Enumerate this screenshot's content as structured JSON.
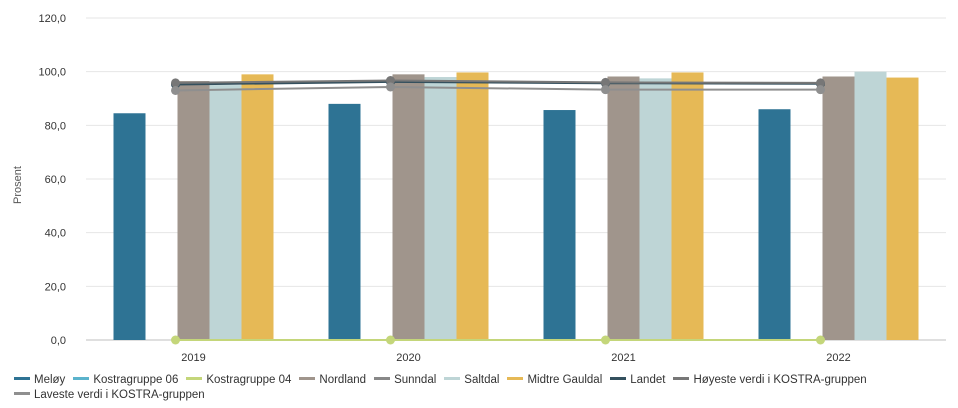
{
  "chart_data": {
    "type": "bar",
    "title": "",
    "ylabel": "Prosent",
    "xlabel": "",
    "ylim": [
      0,
      120
    ],
    "yticks": [
      "0,0",
      "20,0",
      "40,0",
      "60,0",
      "80,0",
      "100,0",
      "120,0"
    ],
    "categories": [
      "2019",
      "2020",
      "2021",
      "2022"
    ],
    "grid": true,
    "legend_position": "bottom",
    "series": [
      {
        "name": "Meløy",
        "kind": "bar",
        "color": "#2e7394",
        "values": [
          84.5,
          88.0,
          85.7,
          86.0
        ]
      },
      {
        "name": "Kostragruppe 06",
        "kind": "bar",
        "color": "#5bb3cc",
        "values": [
          null,
          null,
          null,
          null
        ]
      },
      {
        "name": "Kostragruppe 04",
        "kind": "line",
        "color": "#c4d67a",
        "values": [
          0,
          0,
          0,
          0
        ]
      },
      {
        "name": "Nordland",
        "kind": "bar",
        "color": "#a0958c",
        "values": [
          96.5,
          99.0,
          98.2,
          98.2
        ]
      },
      {
        "name": "Sunndal",
        "kind": "line",
        "color": "#888888",
        "values": [
          null,
          null,
          null,
          null
        ]
      },
      {
        "name": "Saltdal",
        "kind": "bar",
        "color": "#bed5d6",
        "values": [
          95.0,
          98.0,
          97.5,
          100.0
        ]
      },
      {
        "name": "Midtre Gauldal",
        "kind": "bar",
        "color": "#e6b956",
        "values": [
          99.0,
          99.7,
          99.7,
          97.8
        ]
      },
      {
        "name": "Landet",
        "kind": "line",
        "color": "#34505e",
        "values": [
          95.2,
          96.2,
          95.7,
          95.5
        ]
      },
      {
        "name": "Høyeste verdi i KOSTRA-gruppen",
        "kind": "line",
        "color": "#777777",
        "values": [
          95.8,
          96.7,
          96.0,
          95.8
        ]
      },
      {
        "name": "Laveste verdi i KOSTRA-gruppen",
        "kind": "line",
        "color": "#8f8f8f",
        "values": [
          93.0,
          94.3,
          93.3,
          93.3
        ]
      }
    ]
  }
}
